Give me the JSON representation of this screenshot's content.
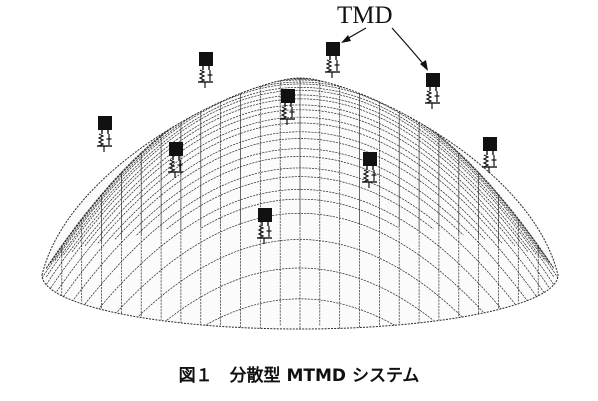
{
  "figure": {
    "tmd_label": "TMD",
    "caption": "図１　分散型 MTMD システム"
  },
  "colors": {
    "ink": "#111111",
    "mesh": "#2a2a2a",
    "background": "#ffffff"
  }
}
